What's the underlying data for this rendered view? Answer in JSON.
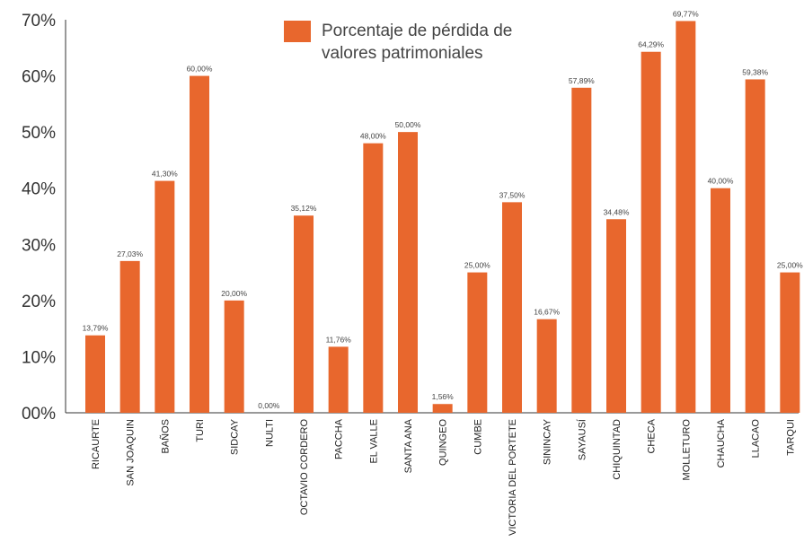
{
  "chart_data": {
    "type": "bar",
    "legend": {
      "label": "Porcentaje de pérdida de valores patrimoniales",
      "label_lines": [
        "Porcentaje de pérdida de",
        "valores patrimoniales"
      ],
      "position": "top-center"
    },
    "ylim": [
      0,
      70
    ],
    "y_ticks": [
      "00%",
      "10%",
      "20%",
      "30%",
      "40%",
      "50%",
      "60%",
      "70%"
    ],
    "grid": false,
    "bar_color": "#E8672D",
    "categories": [
      "RICAURTE",
      "SAN JOAQUIN",
      "BAÑOS",
      "TURI",
      "SIDCAY",
      "NULTI",
      "OCTAVIO CORDERO",
      "PACCHA",
      "EL VALLE",
      "SANTA ANA",
      "QUINGEO",
      "CUMBE",
      "VICTORIA DEL PORTETE",
      "SININCAY",
      "SAYAUSÍ",
      "CHIQUINTAD",
      "CHECA",
      "MOLLETURO",
      "CHAUCHA",
      "LLACAO",
      "TARQUI"
    ],
    "values": [
      13.79,
      27.03,
      41.3,
      60.0,
      20.0,
      0.0,
      35.12,
      11.76,
      48.0,
      50.0,
      1.56,
      25.0,
      37.5,
      16.67,
      57.89,
      34.48,
      64.29,
      69.77,
      40.0,
      59.38,
      25.0
    ],
    "data_labels": [
      "13,79%",
      "27,03%",
      "41,30%",
      "60,00%",
      "20,00%",
      "0,00%",
      "35,12%",
      "11,76%",
      "48,00%",
      "50,00%",
      "1,56%",
      "25,00%",
      "37,50%",
      "16,67%",
      "57,89%",
      "34,48%",
      "64,29%",
      "69,77%",
      "40,00%",
      "59,38%",
      "25,00%"
    ]
  }
}
